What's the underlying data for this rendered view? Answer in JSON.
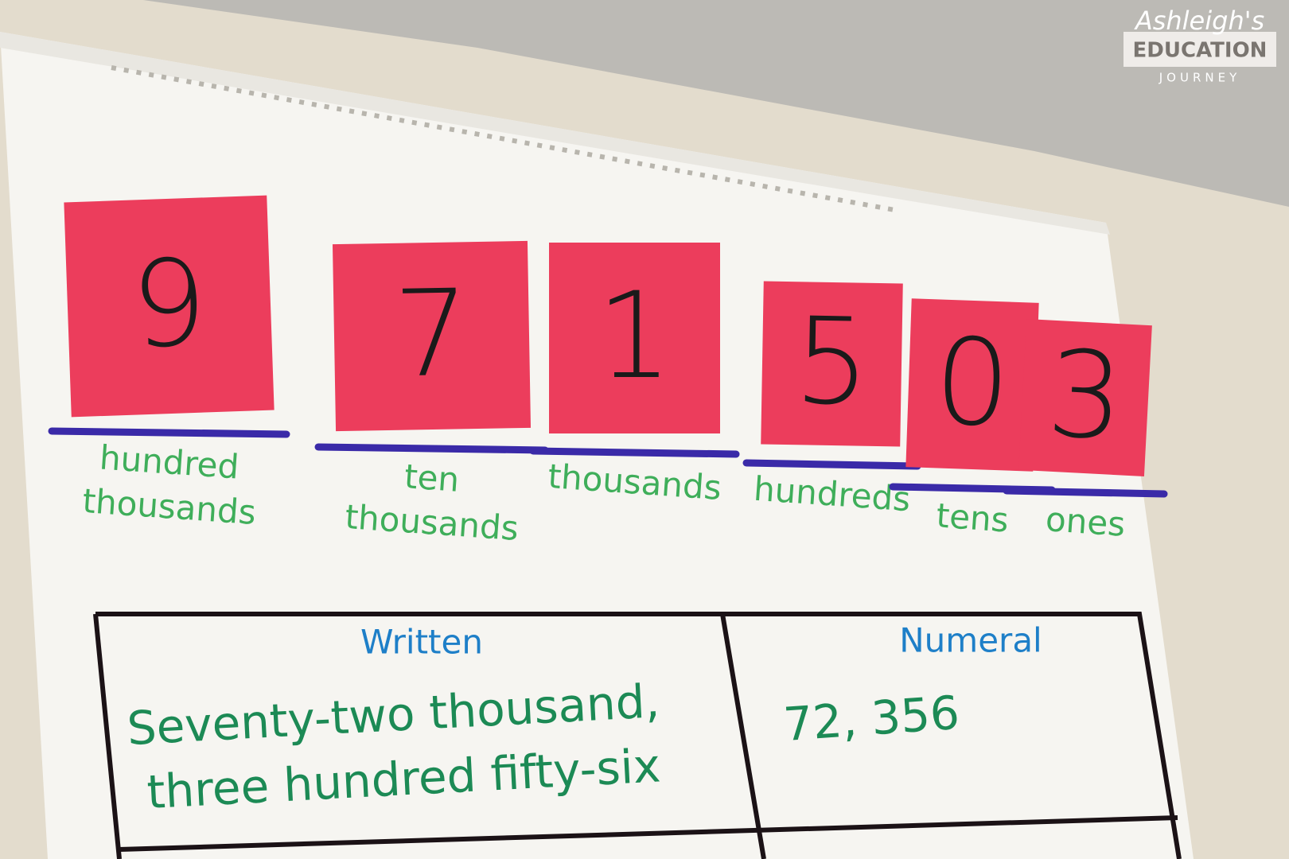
{
  "logo": {
    "name": "Ashleigh's",
    "line1": "EDUCATION",
    "line2": "JOURNEY"
  },
  "notes": [
    {
      "digit": "9",
      "place": [
        "hundred",
        "thousands"
      ]
    },
    {
      "digit": "7",
      "place": [
        "ten",
        "thousands"
      ]
    },
    {
      "digit": "1",
      "place": [
        "thousands"
      ]
    },
    {
      "digit": "5",
      "place": [
        "hundreds"
      ]
    },
    {
      "digit": "0",
      "place": [
        "tens"
      ]
    },
    {
      "digit": "3",
      "place": [
        "ones"
      ]
    }
  ],
  "table": {
    "headers": [
      "Written",
      "Numeral"
    ],
    "rows": [
      [
        [
          "Seventy-two thousand,",
          "three hundred fifty-six"
        ],
        "72, 356"
      ]
    ]
  }
}
